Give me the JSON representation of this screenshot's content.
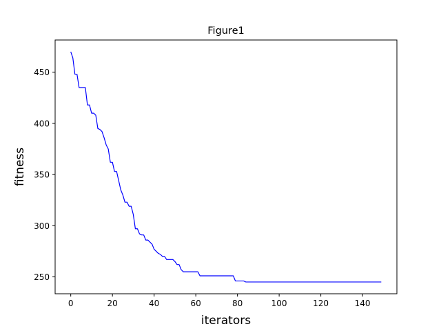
{
  "chart_data": {
    "type": "line",
    "title": "Figure1",
    "xlabel": "iterators",
    "ylabel": "fitness",
    "xlim": [
      -7.5,
      156.5
    ],
    "ylim": [
      233.5,
      481.5
    ],
    "xticks": [
      0,
      20,
      40,
      60,
      80,
      100,
      120,
      140
    ],
    "yticks": [
      250,
      300,
      350,
      400,
      450
    ],
    "grid": false,
    "line_color": "#0000ff",
    "series": [
      {
        "values": [
          470,
          464,
          448,
          448,
          435,
          435,
          435,
          435,
          418,
          418,
          410,
          410,
          408,
          395,
          394,
          392,
          386,
          379,
          375,
          362,
          362,
          353,
          353,
          344,
          335,
          330,
          323,
          323,
          319,
          319,
          311,
          297,
          297,
          292,
          291,
          291,
          286,
          286,
          284,
          282,
          277,
          275,
          273,
          272,
          270,
          270,
          267,
          267,
          267,
          267,
          265,
          262,
          262,
          257,
          255,
          255,
          255,
          255,
          255,
          255,
          255,
          255,
          251,
          251,
          251,
          251,
          251,
          251,
          251,
          251,
          251,
          251,
          251,
          251,
          251,
          251,
          251,
          251,
          251,
          246,
          246,
          246,
          246,
          246,
          245,
          245,
          245,
          245,
          245,
          245,
          245,
          245,
          245,
          245,
          245,
          245,
          245,
          245,
          245,
          245,
          245,
          245,
          245,
          245,
          245,
          245,
          245,
          245,
          245,
          245,
          245,
          245,
          245,
          245,
          245,
          245,
          245,
          245,
          245,
          245,
          245,
          245,
          245,
          245,
          245,
          245,
          245,
          245,
          245,
          245,
          245,
          245,
          245,
          245,
          245,
          245,
          245,
          245,
          245,
          245,
          245,
          245,
          245,
          245,
          245,
          245,
          245,
          245,
          245,
          245
        ]
      }
    ]
  }
}
